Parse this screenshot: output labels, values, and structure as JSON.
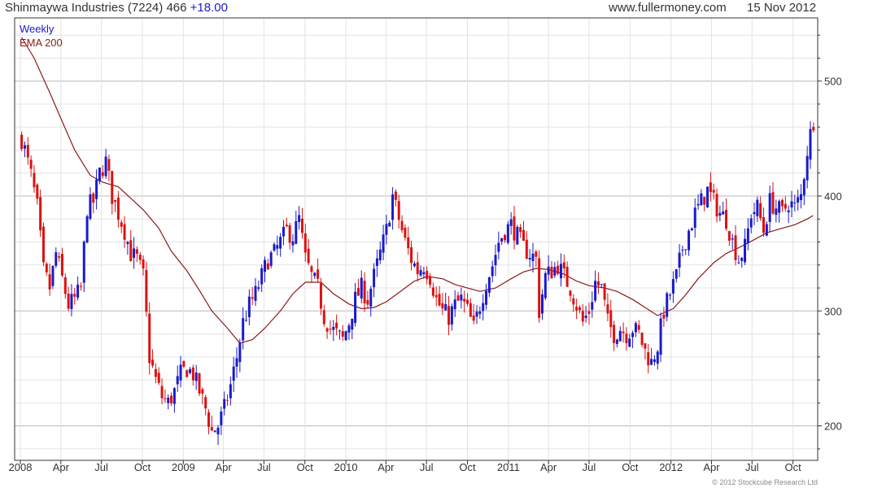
{
  "header": {
    "name": "Shinmaywa Industries",
    "code": "(7224)",
    "price": "466",
    "change": "+18.00",
    "site": "www.fullermoney.com",
    "date": "15 Nov 2012"
  },
  "footer": "© 2012 Stockcube Research Ltd",
  "colors": {
    "up": "#1a1acc",
    "down": "#dd1111",
    "ema": "#8b1a1a",
    "grid": "#e4e4e4",
    "major_grid": "#b8b8b8"
  },
  "chart_data": {
    "type": "candlestick",
    "series": [
      {
        "name": "Weekly",
        "color": "#1a1acc"
      },
      {
        "name": "EMA 200",
        "color": "#8b1a1a"
      }
    ],
    "x_tick_labels": [
      "2008",
      "Apr",
      "Jul",
      "Oct",
      "2009",
      "Apr",
      "Jul",
      "Oct",
      "2010",
      "Apr",
      "Jul",
      "Oct",
      "2011",
      "Apr",
      "Jul",
      "Oct",
      "2012",
      "Apr",
      "Jul",
      "Oct"
    ],
    "y_ticks": [
      200,
      300,
      400,
      500
    ],
    "ylim": [
      170,
      555
    ],
    "grid": true,
    "price_points": [
      [
        "2008-01-04",
        450
      ],
      [
        "2008-01-11",
        440
      ],
      [
        "2008-01-25",
        418
      ],
      [
        "2008-02-08",
        390
      ],
      [
        "2008-02-22",
        335
      ],
      [
        "2008-03-07",
        320
      ],
      [
        "2008-03-21",
        350
      ],
      [
        "2008-04-04",
        328
      ],
      [
        "2008-04-18",
        305
      ],
      [
        "2008-05-02",
        310
      ],
      [
        "2008-05-16",
        320
      ],
      [
        "2008-05-30",
        390
      ],
      [
        "2008-06-13",
        395
      ],
      [
        "2008-06-27",
        420
      ],
      [
        "2008-07-11",
        430
      ],
      [
        "2008-07-25",
        400
      ],
      [
        "2008-08-08",
        385
      ],
      [
        "2008-08-22",
        370
      ],
      [
        "2008-09-05",
        350
      ],
      [
        "2008-09-19",
        345
      ],
      [
        "2008-10-03",
        330
      ],
      [
        "2008-10-17",
        260
      ],
      [
        "2008-10-31",
        240
      ],
      [
        "2008-11-14",
        225
      ],
      [
        "2008-11-28",
        220
      ],
      [
        "2008-12-12",
        230
      ],
      [
        "2008-12-26",
        245
      ],
      [
        "2009-01-09",
        250
      ],
      [
        "2009-01-23",
        245
      ],
      [
        "2009-02-06",
        230
      ],
      [
        "2009-02-20",
        215
      ],
      [
        "2009-03-06",
        195
      ],
      [
        "2009-03-20",
        200
      ],
      [
        "2009-04-03",
        215
      ],
      [
        "2009-04-17",
        235
      ],
      [
        "2009-05-01",
        260
      ],
      [
        "2009-05-15",
        290
      ],
      [
        "2009-05-29",
        305
      ],
      [
        "2009-06-12",
        315
      ],
      [
        "2009-06-26",
        330
      ],
      [
        "2009-07-10",
        345
      ],
      [
        "2009-07-24",
        350
      ],
      [
        "2009-08-07",
        360
      ],
      [
        "2009-08-21",
        370
      ],
      [
        "2009-09-04",
        365
      ],
      [
        "2009-09-18",
        380
      ],
      [
        "2009-10-02",
        345
      ],
      [
        "2009-10-16",
        330
      ],
      [
        "2009-10-30",
        320
      ],
      [
        "2009-11-13",
        295
      ],
      [
        "2009-11-27",
        285
      ],
      [
        "2009-12-11",
        280
      ],
      [
        "2009-12-25",
        275
      ],
      [
        "2010-01-08",
        290
      ],
      [
        "2010-01-22",
        310
      ],
      [
        "2010-02-05",
        320
      ],
      [
        "2010-02-19",
        310
      ],
      [
        "2010-03-05",
        330
      ],
      [
        "2010-03-19",
        350
      ],
      [
        "2010-04-02",
        370
      ],
      [
        "2010-04-16",
        400
      ],
      [
        "2010-04-30",
        380
      ],
      [
        "2010-05-14",
        360
      ],
      [
        "2010-05-28",
        345
      ],
      [
        "2010-06-11",
        335
      ],
      [
        "2010-06-25",
        340
      ],
      [
        "2010-07-09",
        330
      ],
      [
        "2010-07-23",
        310
      ],
      [
        "2010-08-06",
        300
      ],
      [
        "2010-08-20",
        295
      ],
      [
        "2010-09-03",
        305
      ],
      [
        "2010-09-17",
        310
      ],
      [
        "2010-10-01",
        300
      ],
      [
        "2010-10-15",
        285
      ],
      [
        "2010-10-29",
        305
      ],
      [
        "2010-11-12",
        325
      ],
      [
        "2010-11-26",
        340
      ],
      [
        "2010-12-10",
        360
      ],
      [
        "2010-12-24",
        370
      ],
      [
        "2011-01-07",
        375
      ],
      [
        "2011-01-21",
        365
      ],
      [
        "2011-02-04",
        355
      ],
      [
        "2011-02-18",
        350
      ],
      [
        "2011-03-04",
        345
      ],
      [
        "2011-03-11",
        300
      ],
      [
        "2011-03-25",
        330
      ],
      [
        "2011-04-08",
        335
      ],
      [
        "2011-04-22",
        340
      ],
      [
        "2011-05-06",
        330
      ],
      [
        "2011-05-20",
        320
      ],
      [
        "2011-06-03",
        305
      ],
      [
        "2011-06-17",
        290
      ],
      [
        "2011-07-01",
        300
      ],
      [
        "2011-07-15",
        325
      ],
      [
        "2011-07-29",
        320
      ],
      [
        "2011-08-12",
        290
      ],
      [
        "2011-08-26",
        280
      ],
      [
        "2011-09-09",
        285
      ],
      [
        "2011-09-23",
        280
      ],
      [
        "2011-10-07",
        285
      ],
      [
        "2011-10-21",
        280
      ],
      [
        "2011-11-04",
        265
      ],
      [
        "2011-11-18",
        255
      ],
      [
        "2011-12-02",
        270
      ],
      [
        "2011-12-16",
        300
      ],
      [
        "2011-12-30",
        315
      ],
      [
        "2012-01-13",
        330
      ],
      [
        "2012-01-27",
        355
      ],
      [
        "2012-02-10",
        370
      ],
      [
        "2012-02-24",
        385
      ],
      [
        "2012-03-09",
        395
      ],
      [
        "2012-03-23",
        405
      ],
      [
        "2012-04-06",
        395
      ],
      [
        "2012-04-20",
        385
      ],
      [
        "2012-05-04",
        380
      ],
      [
        "2012-05-18",
        360
      ],
      [
        "2012-06-01",
        345
      ],
      [
        "2012-06-15",
        355
      ],
      [
        "2012-06-29",
        385
      ],
      [
        "2012-07-13",
        390
      ],
      [
        "2012-07-27",
        370
      ],
      [
        "2012-08-10",
        395
      ],
      [
        "2012-08-24",
        390
      ],
      [
        "2012-09-07",
        385
      ],
      [
        "2012-09-21",
        395
      ],
      [
        "2012-10-05",
        390
      ],
      [
        "2012-10-19",
        400
      ],
      [
        "2012-11-02",
        440
      ],
      [
        "2012-11-15",
        466
      ]
    ],
    "ema_points": [
      [
        "2008-01-04",
        538
      ],
      [
        "2008-02-01",
        520
      ],
      [
        "2008-03-07",
        490
      ],
      [
        "2008-04-04",
        465
      ],
      [
        "2008-05-02",
        440
      ],
      [
        "2008-06-06",
        418
      ],
      [
        "2008-07-04",
        412
      ],
      [
        "2008-08-08",
        408
      ],
      [
        "2008-09-05",
        398
      ],
      [
        "2008-10-03",
        388
      ],
      [
        "2008-11-07",
        372
      ],
      [
        "2008-12-05",
        352
      ],
      [
        "2009-01-09",
        335
      ],
      [
        "2009-02-06",
        318
      ],
      [
        "2009-03-06",
        300
      ],
      [
        "2009-04-10",
        285
      ],
      [
        "2009-05-08",
        272
      ],
      [
        "2009-06-05",
        275
      ],
      [
        "2009-07-03",
        285
      ],
      [
        "2009-08-07",
        300
      ],
      [
        "2009-09-04",
        315
      ],
      [
        "2009-10-02",
        325
      ],
      [
        "2009-11-06",
        325
      ],
      [
        "2009-12-04",
        315
      ],
      [
        "2010-01-08",
        306
      ],
      [
        "2010-02-05",
        302
      ],
      [
        "2010-03-05",
        303
      ],
      [
        "2010-04-02",
        308
      ],
      [
        "2010-05-07",
        318
      ],
      [
        "2010-06-04",
        326
      ],
      [
        "2010-07-02",
        330
      ],
      [
        "2010-08-06",
        328
      ],
      [
        "2010-09-03",
        323
      ],
      [
        "2010-10-01",
        320
      ],
      [
        "2010-10-29",
        317
      ],
      [
        "2010-12-03",
        320
      ],
      [
        "2011-01-07",
        328
      ],
      [
        "2011-02-04",
        334
      ],
      [
        "2011-03-04",
        337
      ],
      [
        "2011-04-01",
        336
      ],
      [
        "2011-05-06",
        332
      ],
      [
        "2011-06-03",
        326
      ],
      [
        "2011-07-01",
        322
      ],
      [
        "2011-08-05",
        320
      ],
      [
        "2011-09-02",
        317
      ],
      [
        "2011-10-07",
        310
      ],
      [
        "2011-11-04",
        303
      ],
      [
        "2011-12-02",
        296
      ],
      [
        "2012-01-06",
        302
      ],
      [
        "2012-02-03",
        314
      ],
      [
        "2012-03-02",
        328
      ],
      [
        "2012-04-06",
        342
      ],
      [
        "2012-05-04",
        350
      ],
      [
        "2012-06-01",
        355
      ],
      [
        "2012-07-06",
        362
      ],
      [
        "2012-08-03",
        368
      ],
      [
        "2012-09-07",
        372
      ],
      [
        "2012-10-05",
        375
      ],
      [
        "2012-11-02",
        380
      ],
      [
        "2012-11-15",
        383
      ]
    ]
  }
}
